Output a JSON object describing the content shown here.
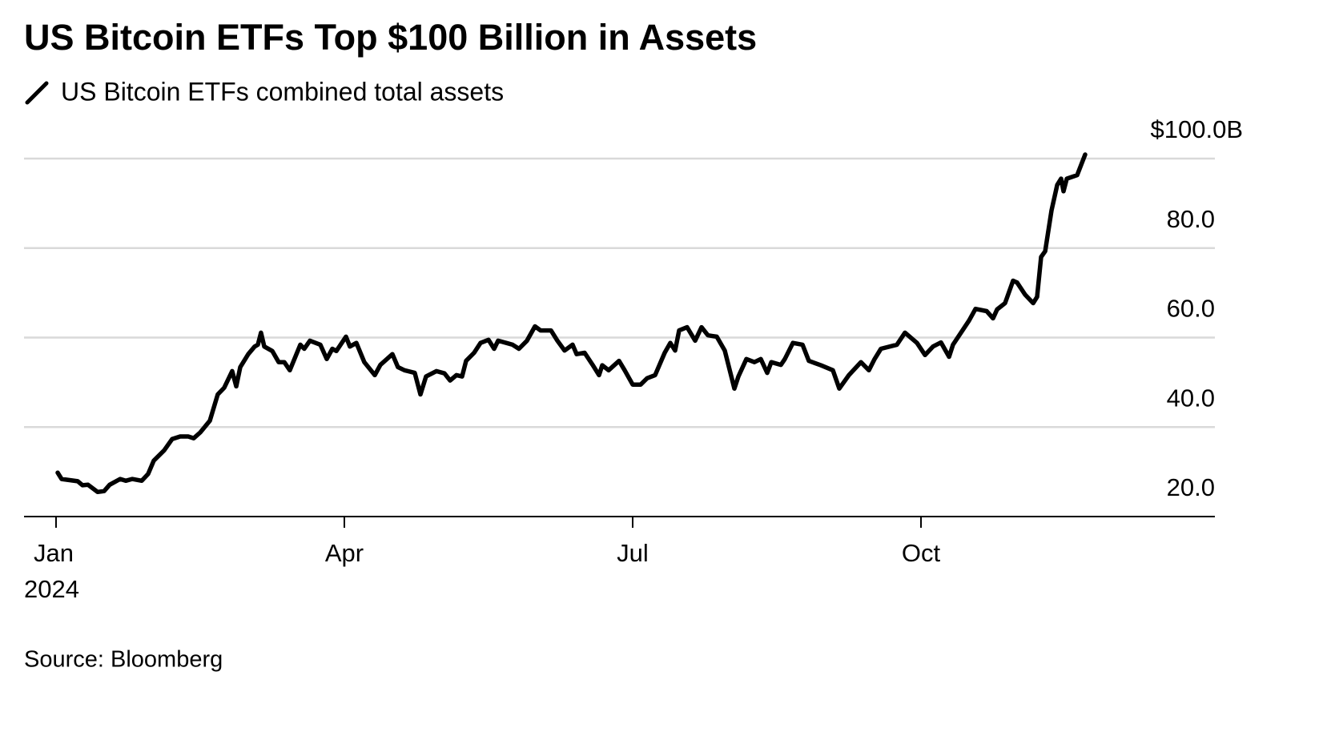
{
  "chart_data": {
    "type": "line",
    "title": "US Bitcoin ETFs Top $100 Billion in Assets",
    "source": "Source: Bloomberg",
    "xtick_year": "2024",
    "xlim": [
      -0.333,
      12.058
    ],
    "xticks": [
      {
        "value": 0,
        "label": "Jan"
      },
      {
        "value": 3,
        "label": "Apr"
      },
      {
        "value": 6,
        "label": "Jul"
      },
      {
        "value": 9,
        "label": "Oct"
      }
    ],
    "ylim": [
      20,
      100
    ],
    "yticks": [
      {
        "value": 20,
        "label": "20.0"
      },
      {
        "value": 40,
        "label": "40.0"
      },
      {
        "value": 60,
        "label": "60.0"
      },
      {
        "value": 80,
        "label": "80.0"
      },
      {
        "value": 100,
        "label": "$100.0B"
      }
    ],
    "grid": true,
    "series": [
      {
        "name": "US Bitcoin ETFs combined total assets",
        "color": "#000000",
        "x": [
          0.017,
          0.058,
          0.225,
          0.275,
          0.333,
          0.433,
          0.5,
          0.558,
          0.667,
          0.725,
          0.792,
          0.892,
          0.958,
          1.017,
          1.125,
          1.208,
          1.292,
          1.375,
          1.433,
          1.5,
          1.6,
          1.683,
          1.75,
          1.833,
          1.875,
          1.917,
          2.0,
          2.067,
          2.1,
          2.133,
          2.167,
          2.25,
          2.317,
          2.375,
          2.433,
          2.542,
          2.583,
          2.642,
          2.75,
          2.817,
          2.875,
          2.917,
          3.017,
          3.058,
          3.125,
          3.208,
          3.317,
          3.375,
          3.5,
          3.558,
          3.625,
          3.733,
          3.792,
          3.85,
          3.958,
          4.042,
          4.1,
          4.167,
          4.225,
          4.267,
          4.35,
          4.417,
          4.5,
          4.558,
          4.6,
          4.75,
          4.817,
          4.9,
          4.983,
          5.042,
          5.15,
          5.217,
          5.292,
          5.375,
          5.417,
          5.5,
          5.583,
          5.65,
          5.683,
          5.75,
          5.858,
          5.917,
          6.0,
          6.083,
          6.15,
          6.233,
          6.333,
          6.392,
          6.442,
          6.483,
          6.567,
          6.65,
          6.717,
          6.783,
          6.875,
          6.958,
          7.058,
          7.1,
          7.183,
          7.267,
          7.333,
          7.4,
          7.442,
          7.542,
          7.583,
          7.667,
          7.767,
          7.833,
          7.958,
          8.083,
          8.15,
          8.25,
          8.375,
          8.458,
          8.517,
          8.583,
          8.75,
          8.833,
          8.958,
          9.042,
          9.125,
          9.208,
          9.292,
          9.333,
          9.5,
          9.567,
          9.683,
          9.75,
          9.792,
          9.875,
          9.958,
          10.0,
          10.083,
          10.167,
          10.208,
          10.25,
          10.292,
          10.358,
          10.417,
          10.458,
          10.483,
          10.517,
          10.625,
          10.708
        ],
        "values": [
          29.8,
          28.4,
          27.9,
          27.0,
          27.1,
          25.5,
          25.7,
          27.1,
          28.4,
          28.0,
          28.4,
          28.0,
          29.5,
          32.5,
          34.8,
          37.3,
          37.9,
          37.9,
          37.5,
          38.8,
          41.4,
          47.3,
          48.8,
          52.5,
          49.1,
          53.4,
          56.3,
          58.0,
          58.4,
          61.1,
          58.0,
          57.0,
          54.5,
          54.5,
          52.7,
          58.4,
          57.5,
          59.3,
          58.4,
          55.2,
          57.5,
          57.0,
          60.2,
          58.0,
          58.8,
          54.5,
          51.6,
          53.9,
          56.3,
          53.4,
          52.7,
          52.1,
          47.3,
          51.3,
          52.5,
          52.0,
          50.4,
          51.6,
          51.3,
          54.8,
          56.6,
          58.8,
          59.5,
          57.5,
          59.3,
          58.4,
          57.5,
          59.3,
          62.5,
          61.6,
          61.6,
          59.3,
          57.1,
          58.4,
          56.3,
          56.6,
          53.9,
          51.6,
          53.8,
          52.7,
          54.8,
          52.7,
          49.5,
          49.5,
          50.9,
          51.6,
          56.6,
          58.8,
          57.1,
          61.6,
          62.3,
          59.3,
          62.3,
          60.5,
          60.2,
          57.1,
          48.6,
          51.3,
          55.2,
          54.5,
          55.2,
          52.1,
          54.5,
          53.9,
          55.2,
          58.8,
          58.4,
          54.8,
          53.8,
          52.7,
          48.6,
          51.6,
          54.5,
          52.7,
          55.2,
          57.5,
          58.4,
          61.1,
          58.8,
          56.1,
          58.0,
          58.9,
          55.7,
          58.4,
          63.8,
          66.4,
          65.9,
          64.3,
          66.3,
          67.7,
          72.7,
          72.3,
          69.6,
          67.7,
          69.1,
          78.0,
          79.3,
          88.4,
          94.1,
          95.5,
          92.7,
          95.5,
          96.3,
          100.9
        ]
      }
    ]
  }
}
